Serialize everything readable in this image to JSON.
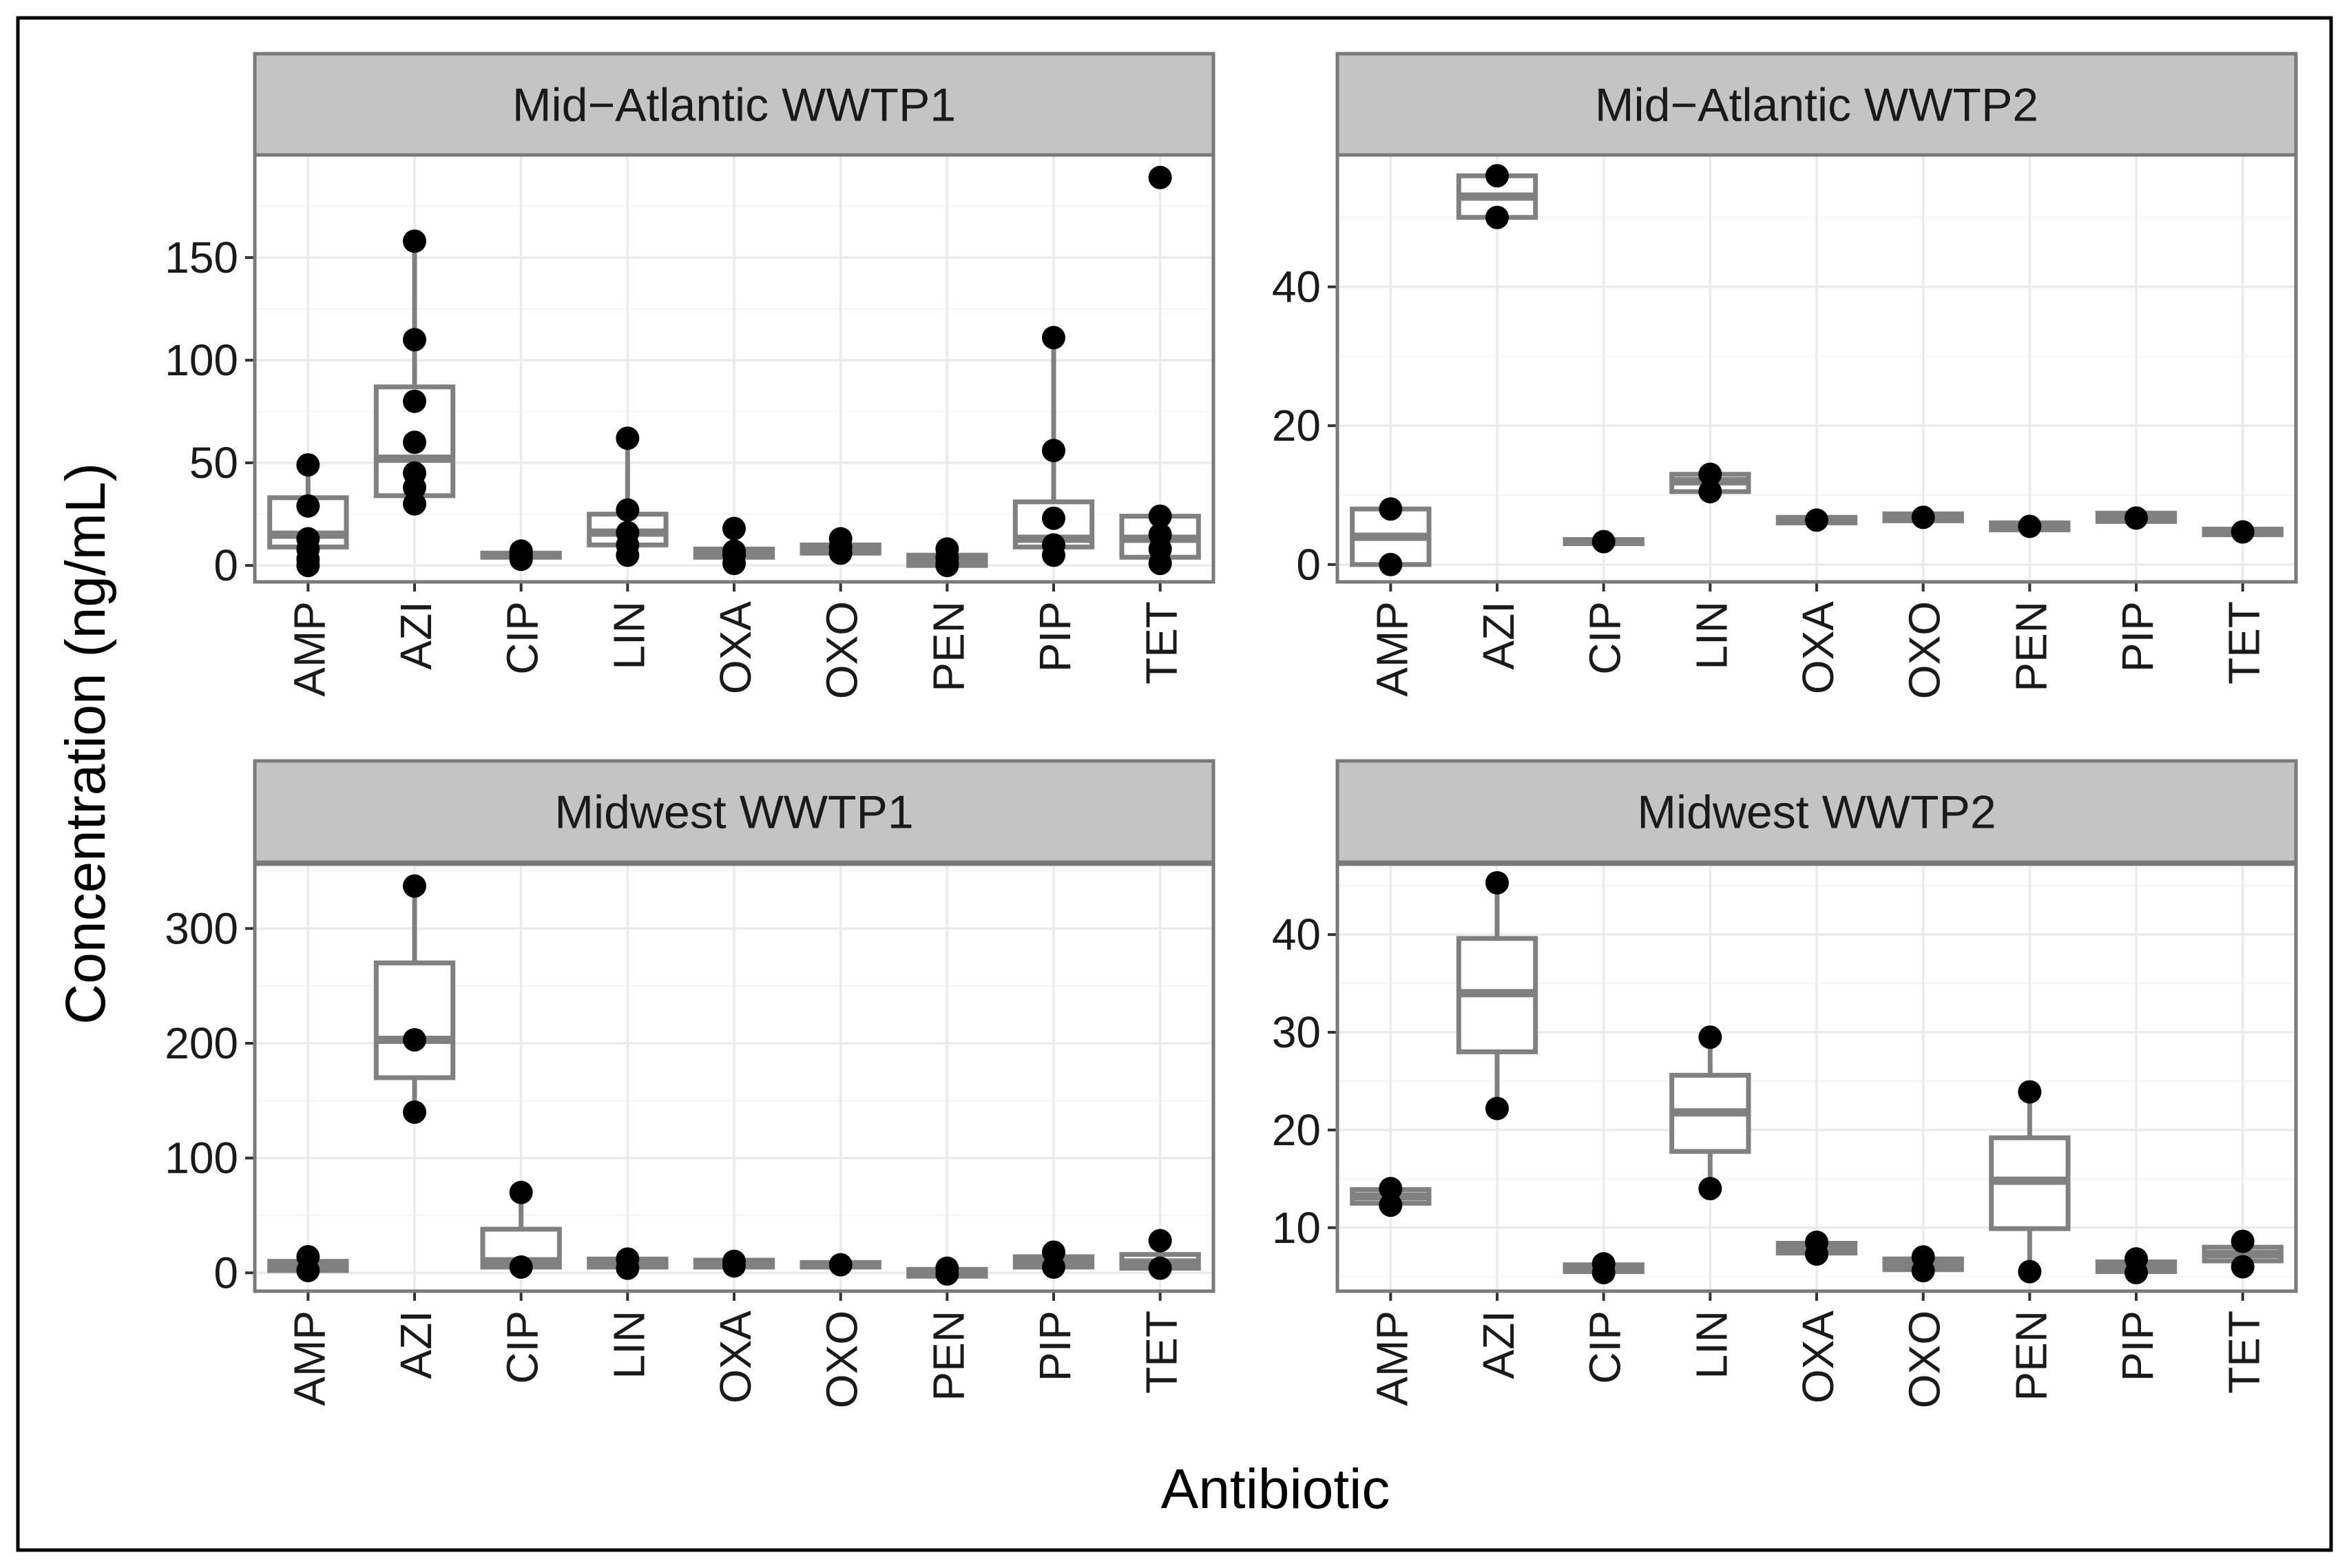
{
  "chart_data": [
    {
      "type": "box",
      "title": "Mid−Atlantic WWTP1",
      "categories": [
        "AMP",
        "AZI",
        "CIP",
        "LIN",
        "OXA",
        "OXO",
        "PEN",
        "PIP",
        "TET"
      ],
      "yticks": [
        0,
        50,
        100,
        150
      ],
      "ylim": [
        -8,
        200
      ],
      "boxes": [
        {
          "cat": "AMP",
          "q1": 9,
          "median": 15,
          "q3": 33,
          "whisker_low": 0,
          "whisker_high": 49
        },
        {
          "cat": "AZI",
          "q1": 34,
          "median": 52,
          "q3": 87,
          "whisker_low": 29,
          "whisker_high": 158
        },
        {
          "cat": "CIP",
          "q1": 4,
          "median": 5,
          "q3": 6,
          "whisker_low": 3,
          "whisker_high": 7
        },
        {
          "cat": "LIN",
          "q1": 10,
          "median": 16,
          "q3": 25,
          "whisker_low": 5,
          "whisker_high": 62
        },
        {
          "cat": "OXA",
          "q1": 4,
          "median": 6,
          "q3": 8,
          "whisker_low": 0,
          "whisker_high": 18
        },
        {
          "cat": "OXO",
          "q1": 6,
          "median": 8,
          "q3": 10,
          "whisker_low": 5,
          "whisker_high": 13
        },
        {
          "cat": "PEN",
          "q1": 0,
          "median": 2,
          "q3": 5,
          "whisker_low": 0,
          "whisker_high": 8
        },
        {
          "cat": "PIP",
          "q1": 9,
          "median": 13,
          "q3": 31,
          "whisker_low": 4,
          "whisker_high": 111
        },
        {
          "cat": "TET",
          "q1": 4,
          "median": 13,
          "q3": 24,
          "whisker_low": 0,
          "whisker_high": 24
        }
      ],
      "points": [
        {
          "cat": "AMP",
          "values": [
            49,
            29,
            13,
            8,
            3,
            0
          ]
        },
        {
          "cat": "AZI",
          "values": [
            158,
            110,
            80,
            60,
            45,
            38,
            30
          ]
        },
        {
          "cat": "CIP",
          "values": [
            7,
            6,
            5,
            4,
            3
          ]
        },
        {
          "cat": "LIN",
          "values": [
            62,
            27,
            16,
            10,
            5
          ]
        },
        {
          "cat": "OXA",
          "values": [
            18,
            7,
            5,
            1
          ]
        },
        {
          "cat": "OXO",
          "values": [
            13,
            9,
            6
          ]
        },
        {
          "cat": "PEN",
          "values": [
            8,
            4,
            1,
            0
          ]
        },
        {
          "cat": "PIP",
          "values": [
            111,
            56,
            23,
            10,
            5
          ]
        },
        {
          "cat": "TET",
          "values": [
            189,
            24,
            15,
            8,
            1
          ]
        }
      ]
    },
    {
      "type": "box",
      "title": "Mid−Atlantic WWTP2",
      "categories": [
        "AMP",
        "AZI",
        "CIP",
        "LIN",
        "OXA",
        "OXO",
        "PEN",
        "PIP",
        "TET"
      ],
      "yticks": [
        0,
        20,
        40
      ],
      "ylim": [
        -2.5,
        59
      ],
      "boxes": [
        {
          "cat": "AMP",
          "q1": 0,
          "median": 4,
          "q3": 8,
          "whisker_low": 0,
          "whisker_high": 8
        },
        {
          "cat": "AZI",
          "q1": 50,
          "median": 53,
          "q3": 56,
          "whisker_low": 50,
          "whisker_high": 56
        },
        {
          "cat": "CIP",
          "q1": 3,
          "median": 3.3,
          "q3": 3.6,
          "whisker_low": 3,
          "whisker_high": 3.6
        },
        {
          "cat": "LIN",
          "q1": 10.5,
          "median": 12,
          "q3": 13,
          "whisker_low": 10.5,
          "whisker_high": 13
        },
        {
          "cat": "OXA",
          "q1": 6,
          "median": 6.4,
          "q3": 6.8,
          "whisker_low": 6,
          "whisker_high": 6.8
        },
        {
          "cat": "OXO",
          "q1": 6.3,
          "median": 6.8,
          "q3": 7.3,
          "whisker_low": 6.3,
          "whisker_high": 7.3
        },
        {
          "cat": "PEN",
          "q1": 5,
          "median": 5.5,
          "q3": 6,
          "whisker_low": 5,
          "whisker_high": 6
        },
        {
          "cat": "PIP",
          "q1": 6.2,
          "median": 6.7,
          "q3": 7.4,
          "whisker_low": 6.2,
          "whisker_high": 7.4
        },
        {
          "cat": "TET",
          "q1": 4.3,
          "median": 4.7,
          "q3": 5.1,
          "whisker_low": 4.3,
          "whisker_high": 5.1
        }
      ],
      "points": [
        {
          "cat": "AMP",
          "values": [
            8,
            0
          ]
        },
        {
          "cat": "AZI",
          "values": [
            56,
            50
          ]
        },
        {
          "cat": "CIP",
          "values": [
            3.3
          ]
        },
        {
          "cat": "LIN",
          "values": [
            13,
            10.5
          ]
        },
        {
          "cat": "OXA",
          "values": [
            6.4
          ]
        },
        {
          "cat": "OXO",
          "values": [
            6.8
          ]
        },
        {
          "cat": "PEN",
          "values": [
            5.5
          ]
        },
        {
          "cat": "PIP",
          "values": [
            6.7
          ]
        },
        {
          "cat": "TET",
          "values": [
            4.7
          ]
        }
      ]
    },
    {
      "type": "box",
      "title": "Midwest WWTP1",
      "categories": [
        "AMP",
        "AZI",
        "CIP",
        "LIN",
        "OXA",
        "OXO",
        "PEN",
        "PIP",
        "TET"
      ],
      "yticks": [
        0,
        100,
        200,
        300
      ],
      "ylim": [
        -16,
        356
      ],
      "boxes": [
        {
          "cat": "AMP",
          "q1": 2,
          "median": 7,
          "q3": 10,
          "whisker_low": 0,
          "whisker_high": 14
        },
        {
          "cat": "AZI",
          "q1": 170,
          "median": 203,
          "q3": 270,
          "whisker_low": 140,
          "whisker_high": 337
        },
        {
          "cat": "CIP",
          "q1": 5,
          "median": 10,
          "q3": 38,
          "whisker_low": 5,
          "whisker_high": 70
        },
        {
          "cat": "LIN",
          "q1": 5,
          "median": 8,
          "q3": 12,
          "whisker_low": 3,
          "whisker_high": 13
        },
        {
          "cat": "OXA",
          "q1": 5,
          "median": 8,
          "q3": 11,
          "whisker_low": 4,
          "whisker_high": 11
        },
        {
          "cat": "OXO",
          "q1": 5,
          "median": 7,
          "q3": 9,
          "whisker_low": 5,
          "whisker_high": 9
        },
        {
          "cat": "PEN",
          "q1": -3,
          "median": 0,
          "q3": 3,
          "whisker_low": -3,
          "whisker_high": 5
        },
        {
          "cat": "PIP",
          "q1": 5,
          "median": 9,
          "q3": 14,
          "whisker_low": 4,
          "whisker_high": 18
        },
        {
          "cat": "TET",
          "q1": 4,
          "median": 9,
          "q3": 16,
          "whisker_low": 4,
          "whisker_high": 28
        }
      ],
      "points": [
        {
          "cat": "AMP",
          "values": [
            14,
            2
          ]
        },
        {
          "cat": "AZI",
          "values": [
            337,
            203,
            140
          ]
        },
        {
          "cat": "CIP",
          "values": [
            70,
            5
          ]
        },
        {
          "cat": "LIN",
          "values": [
            12,
            4
          ]
        },
        {
          "cat": "OXA",
          "values": [
            10,
            6
          ]
        },
        {
          "cat": "OXO",
          "values": [
            7
          ]
        },
        {
          "cat": "PEN",
          "values": [
            4,
            -1
          ]
        },
        {
          "cat": "PIP",
          "values": [
            18,
            5
          ]
        },
        {
          "cat": "TET",
          "values": [
            28,
            4
          ]
        }
      ]
    },
    {
      "type": "box",
      "title": "Midwest WWTP2",
      "categories": [
        "AMP",
        "AZI",
        "CIP",
        "LIN",
        "OXA",
        "OXO",
        "PEN",
        "PIP",
        "TET"
      ],
      "yticks": [
        10,
        20,
        30,
        40
      ],
      "ylim": [
        3.5,
        47.2
      ],
      "boxes": [
        {
          "cat": "AMP",
          "q1": 12.5,
          "median": 13.2,
          "q3": 13.9,
          "whisker_low": 12.3,
          "whisker_high": 14.0
        },
        {
          "cat": "AZI",
          "q1": 28,
          "median": 34,
          "q3": 39.6,
          "whisker_low": 22.2,
          "whisker_high": 45.3
        },
        {
          "cat": "CIP",
          "q1": 5.5,
          "median": 5.8,
          "q3": 6.2,
          "whisker_low": 5.4,
          "whisker_high": 6.3
        },
        {
          "cat": "LIN",
          "q1": 17.8,
          "median": 21.8,
          "q3": 25.6,
          "whisker_low": 14.0,
          "whisker_high": 29.5
        },
        {
          "cat": "OXA",
          "q1": 7.4,
          "median": 7.9,
          "q3": 8.4,
          "whisker_low": 7.3,
          "whisker_high": 8.5
        },
        {
          "cat": "OXO",
          "q1": 5.7,
          "median": 6.2,
          "q3": 6.8,
          "whisker_low": 5.6,
          "whisker_high": 7.0
        },
        {
          "cat": "PEN",
          "q1": 9.9,
          "median": 14.8,
          "q3": 19.2,
          "whisker_low": 5.5,
          "whisker_high": 23.9
        },
        {
          "cat": "PIP",
          "q1": 5.5,
          "median": 6.0,
          "q3": 6.5,
          "whisker_low": 5.4,
          "whisker_high": 6.8
        },
        {
          "cat": "TET",
          "q1": 6.6,
          "median": 7.3,
          "q3": 8.0,
          "whisker_low": 6.0,
          "whisker_high": 8.6
        }
      ],
      "points": [
        {
          "cat": "AMP",
          "values": [
            14.0,
            12.3
          ]
        },
        {
          "cat": "AZI",
          "values": [
            45.3,
            22.2
          ]
        },
        {
          "cat": "CIP",
          "values": [
            6.3,
            5.4
          ]
        },
        {
          "cat": "LIN",
          "values": [
            29.5,
            14.0
          ]
        },
        {
          "cat": "OXA",
          "values": [
            8.5,
            7.3
          ]
        },
        {
          "cat": "OXO",
          "values": [
            7.0,
            5.6
          ]
        },
        {
          "cat": "PEN",
          "values": [
            23.9,
            5.5
          ]
        },
        {
          "cat": "PIP",
          "values": [
            6.8,
            5.4
          ]
        },
        {
          "cat": "TET",
          "values": [
            8.6,
            6.0
          ]
        }
      ]
    }
  ],
  "axes": {
    "ylabel": "Concentration (ng/mL)",
    "xlabel": "Antibiotic"
  }
}
